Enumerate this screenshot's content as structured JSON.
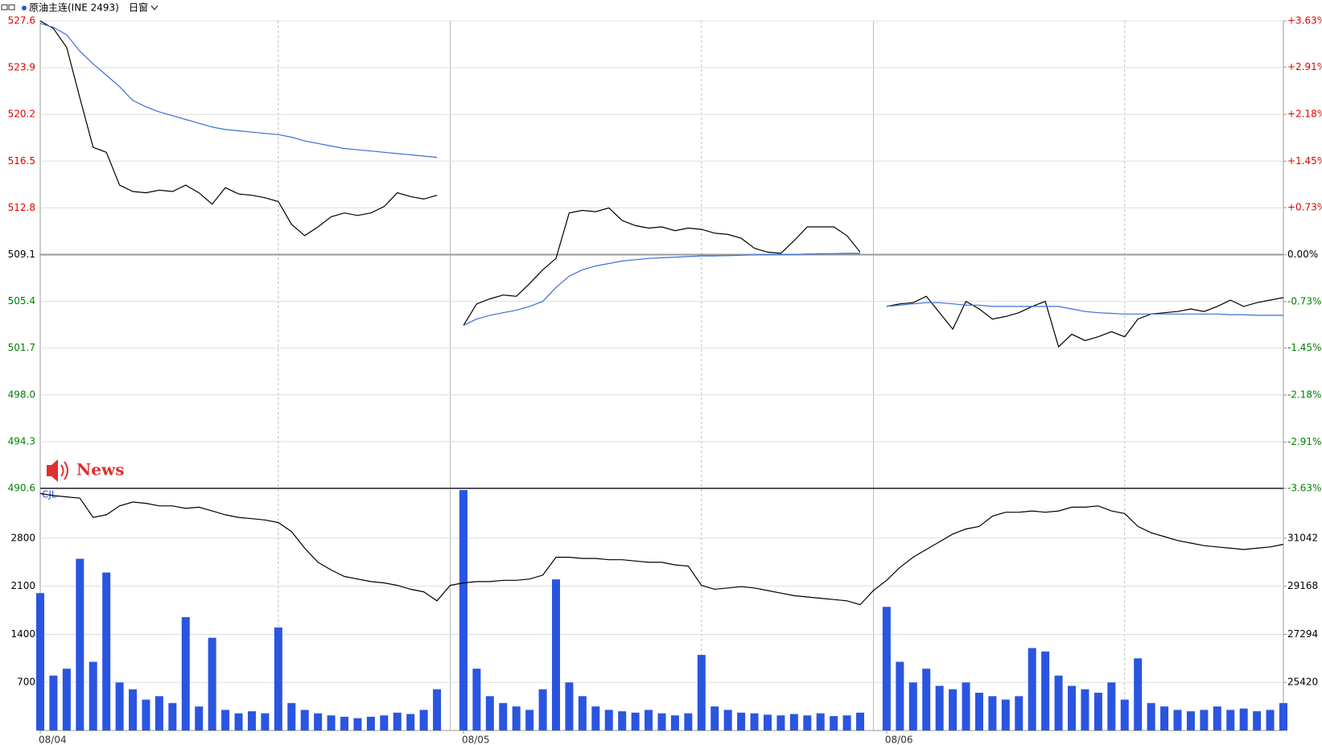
{
  "header": {
    "symbol": "原油主连(INE 2493)",
    "period": "日窗"
  },
  "news": "News",
  "chart_data": [
    {
      "type": "line",
      "ylim": [
        490.6,
        527.6
      ],
      "yticks": [
        527.6,
        523.9,
        520.2,
        516.5,
        512.8,
        509.1,
        505.4,
        501.7,
        {
          "value": 498,
          "label": "498.0"
        },
        494.3,
        490.6
      ],
      "y2lim": [
        -3.63,
        3.63
      ],
      "y2ticks": [
        {
          "value": 3.63,
          "label": "+3.63%"
        },
        {
          "value": 2.91,
          "label": "+2.91%"
        },
        {
          "value": 2.18,
          "label": "+2.18%"
        },
        {
          "value": 1.45,
          "label": "+1.45%"
        },
        {
          "value": 0.73,
          "label": "+0.73%"
        },
        {
          "value": 0,
          "label": "0.00%"
        },
        {
          "value": -0.73,
          "label": "-0.73%"
        },
        {
          "value": -1.45,
          "label": "-1.45%"
        },
        {
          "value": -2.18,
          "label": "-2.18%"
        },
        {
          "value": -2.91,
          "label": "-2.91%"
        },
        {
          "value": -3.63,
          "label": "-3.63%"
        }
      ],
      "up_color": "#e00000",
      "down_color": "#008000",
      "series": [
        {
          "color": "#000000",
          "values": [
            527.6,
            527.0,
            525.5,
            521.5,
            517.6,
            517.2,
            514.6,
            514.1,
            514.0,
            514.2,
            514.1,
            514.6,
            514.0,
            513.1,
            514.4,
            513.9,
            513.8,
            513.6,
            513.3,
            511.5,
            510.6,
            511.3,
            512.1,
            512.4,
            512.2,
            512.4,
            512.9,
            514.0,
            513.7,
            513.5,
            513.8,
            null,
            503.5,
            505.2,
            505.6,
            505.9,
            505.8,
            506.8,
            507.9,
            508.8,
            512.4,
            512.6,
            512.5,
            512.8,
            511.8,
            511.4,
            511.2,
            511.3,
            511.0,
            511.2,
            511.1,
            510.8,
            510.7,
            510.4,
            509.6,
            509.3,
            509.2,
            510.2,
            511.3,
            511.3,
            511.3,
            510.6,
            509.3,
            null,
            505.0,
            505.2,
            505.3,
            505.8,
            504.5,
            503.2,
            505.4,
            504.8,
            504.0,
            504.2,
            504.5,
            505.0,
            505.4,
            501.8,
            502.8,
            502.3,
            502.6,
            503.0,
            502.6,
            504.0,
            504.4,
            504.5,
            504.6,
            504.8,
            504.6,
            505.0,
            505.5,
            505.0,
            505.3,
            505.5,
            505.7
          ]
        },
        {
          "color": "#3a6fd8",
          "values": [
            527.4,
            527.1,
            526.5,
            525.2,
            524.2,
            523.3,
            522.4,
            521.3,
            520.8,
            520.4,
            520.1,
            519.8,
            519.5,
            519.2,
            519.0,
            518.9,
            518.8,
            518.7,
            518.6,
            518.4,
            518.1,
            517.9,
            517.7,
            517.5,
            517.4,
            517.3,
            517.2,
            517.1,
            517.0,
            516.9,
            516.8,
            null,
            503.5,
            504.0,
            504.3,
            504.5,
            504.7,
            505.0,
            505.4,
            506.5,
            507.4,
            507.9,
            508.2,
            508.4,
            508.6,
            508.7,
            508.8,
            508.85,
            508.9,
            508.95,
            509.0,
            509.0,
            509.02,
            509.05,
            509.08,
            509.1,
            509.1,
            509.12,
            509.15,
            509.17,
            509.18,
            509.2,
            509.2,
            null,
            505.0,
            505.1,
            505.2,
            505.3,
            505.3,
            505.2,
            505.1,
            505.1,
            505.0,
            505.0,
            505.0,
            505.0,
            505.0,
            505.0,
            504.8,
            504.6,
            504.5,
            504.45,
            504.4,
            504.4,
            504.4,
            504.4,
            504.4,
            504.4,
            504.4,
            504.4,
            504.35,
            504.35,
            504.3,
            504.3,
            504.3
          ]
        }
      ]
    },
    {
      "type": "bar",
      "label": "CJL",
      "categories": [
        "08/04",
        null,
        null,
        null,
        null,
        null,
        null,
        null,
        null,
        null,
        null,
        null,
        null,
        null,
        null,
        null,
        null,
        null,
        null,
        null,
        null,
        null,
        null,
        null,
        null,
        null,
        null,
        null,
        null,
        null,
        null,
        null,
        "08/05",
        null,
        null,
        null,
        null,
        null,
        null,
        null,
        null,
        null,
        null,
        null,
        null,
        null,
        null,
        null,
        null,
        null,
        null,
        null,
        null,
        null,
        null,
        null,
        null,
        null,
        null,
        null,
        null,
        null,
        null,
        null,
        "08/06",
        null,
        null,
        null,
        null,
        null,
        null,
        null,
        null,
        null,
        null,
        null,
        null,
        null,
        null,
        null,
        null,
        null,
        null,
        null,
        null,
        null,
        null,
        null,
        null,
        null,
        null,
        null,
        null,
        null,
        null
      ],
      "ylim": [
        0,
        3525
      ],
      "yticks": [
        700,
        1400,
        2100,
        2800
      ],
      "y2lim": [
        23546,
        32982
      ],
      "y2ticks": [
        25420,
        27294,
        29168,
        31042
      ],
      "series": [
        {
          "color": "#2a55e0",
          "values": [
            2000,
            800,
            900,
            2500,
            1000,
            2300,
            700,
            600,
            450,
            500,
            400,
            1650,
            350,
            1350,
            300,
            250,
            280,
            250,
            1500,
            400,
            300,
            250,
            220,
            200,
            180,
            200,
            220,
            260,
            240,
            300,
            600,
            null,
            3500,
            900,
            500,
            400,
            350,
            300,
            600,
            2200,
            700,
            500,
            350,
            300,
            280,
            260,
            300,
            250,
            220,
            250,
            1100,
            350,
            300,
            260,
            250,
            230,
            220,
            240,
            220,
            250,
            210,
            220,
            260,
            null,
            1800,
            1000,
            700,
            900,
            650,
            600,
            700,
            550,
            500,
            450,
            500,
            1200,
            1150,
            800,
            650,
            600,
            550,
            700,
            450,
            1050,
            400,
            350,
            300,
            280,
            300,
            350,
            300,
            320,
            280,
            300,
            400
          ]
        },
        {
          "type": "line",
          "axis": "y2",
          "color": "#000000",
          "values": [
            32780,
            32700,
            32650,
            32600,
            31850,
            31950,
            32300,
            32450,
            32400,
            32300,
            32300,
            32200,
            32250,
            32100,
            31950,
            31850,
            31800,
            31750,
            31650,
            31300,
            30650,
            30100,
            29800,
            29550,
            29450,
            29350,
            29300,
            29200,
            29050,
            28950,
            28600,
            29200,
            29300,
            29350,
            29350,
            29400,
            29400,
            29450,
            29600,
            30300,
            30300,
            30250,
            30250,
            30200,
            30200,
            30150,
            30100,
            30100,
            30000,
            29950,
            29200,
            29050,
            29100,
            29150,
            29100,
            29000,
            28900,
            28800,
            28750,
            28700,
            28650,
            28600,
            28450,
            29000,
            29400,
            29900,
            30300,
            30600,
            30900,
            31200,
            31400,
            31500,
            31900,
            32050,
            32050,
            32100,
            32050,
            32100,
            32250,
            32250,
            32300,
            32100,
            32000,
            31500,
            31250,
            31100,
            30950,
            30850,
            30750,
            30700,
            30650,
            30600,
            30650,
            30700,
            30800
          ]
        }
      ]
    }
  ]
}
